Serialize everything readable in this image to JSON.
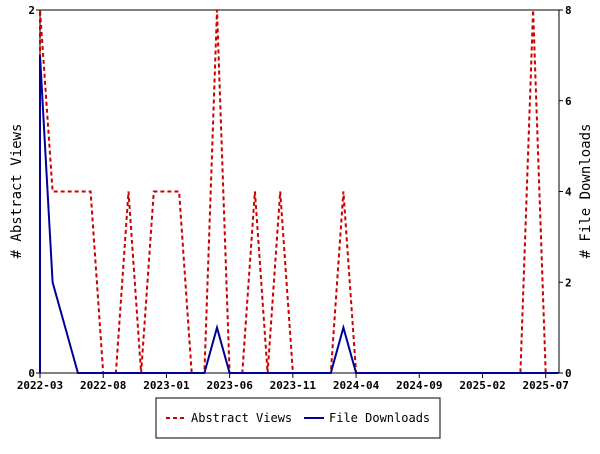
{
  "chart_data": {
    "type": "line",
    "x_ticks": [
      "2022-03",
      "2022-08",
      "2023-01",
      "2023-06",
      "2023-11",
      "2024-04",
      "2024-09",
      "2025-02",
      "2025-07"
    ],
    "left_axis": {
      "label": "# Abstract Views",
      "ylim": [
        0,
        2
      ],
      "ticks": [
        0,
        2
      ]
    },
    "right_axis": {
      "label": "# File Downloads",
      "ylim": [
        0,
        8
      ],
      "ticks": [
        0,
        2,
        4,
        6,
        8
      ]
    },
    "grid": false,
    "legend_position": "bottom-center",
    "series": [
      {
        "name": "Abstract Views",
        "axis": "left",
        "color": "#cc0000",
        "style": "dashed",
        "x": [
          "2022-03",
          "2022-04",
          "2022-05",
          "2022-06",
          "2022-07",
          "2022-08",
          "2022-09",
          "2022-10",
          "2022-11",
          "2022-12",
          "2023-01",
          "2023-02",
          "2023-03",
          "2023-04",
          "2023-05",
          "2023-06",
          "2023-07",
          "2023-08",
          "2023-09",
          "2023-10",
          "2023-11",
          "2023-12",
          "2024-01",
          "2024-02",
          "2024-03",
          "2024-04",
          "2024-05",
          "2024-06",
          "2024-07",
          "2024-08",
          "2024-09",
          "2024-10",
          "2024-11",
          "2024-12",
          "2025-01",
          "2025-02",
          "2025-03",
          "2025-04",
          "2025-05",
          "2025-06",
          "2025-07",
          "2025-08"
        ],
        "values": [
          2,
          1,
          1,
          1,
          1,
          0,
          0,
          1,
          0,
          1,
          1,
          1,
          0,
          0,
          2,
          0,
          0,
          1,
          0,
          1,
          0,
          0,
          0,
          0,
          1,
          0,
          0,
          0,
          0,
          0,
          0,
          0,
          0,
          0,
          0,
          0,
          0,
          0,
          0,
          2,
          0,
          0
        ]
      },
      {
        "name": "File Downloads",
        "axis": "right",
        "color": "#000099",
        "style": "solid",
        "x": [
          "2022-03",
          "2022-04",
          "2022-05",
          "2022-06",
          "2022-07",
          "2022-08",
          "2022-09",
          "2022-10",
          "2022-11",
          "2022-12",
          "2023-01",
          "2023-02",
          "2023-03",
          "2023-04",
          "2023-05",
          "2023-06",
          "2023-07",
          "2023-08",
          "2023-09",
          "2023-10",
          "2023-11",
          "2023-12",
          "2024-01",
          "2024-02",
          "2024-03",
          "2024-04",
          "2024-05",
          "2024-06",
          "2024-07",
          "2024-08",
          "2024-09",
          "2024-10",
          "2024-11",
          "2024-12",
          "2025-01",
          "2025-02",
          "2025-03",
          "2025-04",
          "2025-05",
          "2025-06",
          "2025-07",
          "2025-08"
        ],
        "values": [
          7,
          2,
          1,
          0,
          0,
          0,
          0,
          0,
          0,
          0,
          0,
          0,
          0,
          0,
          1,
          0,
          0,
          0,
          0,
          0,
          0,
          0,
          0,
          0,
          1,
          0,
          0,
          0,
          0,
          0,
          0,
          0,
          0,
          0,
          0,
          0,
          0,
          0,
          0,
          0,
          0,
          0
        ]
      }
    ]
  }
}
